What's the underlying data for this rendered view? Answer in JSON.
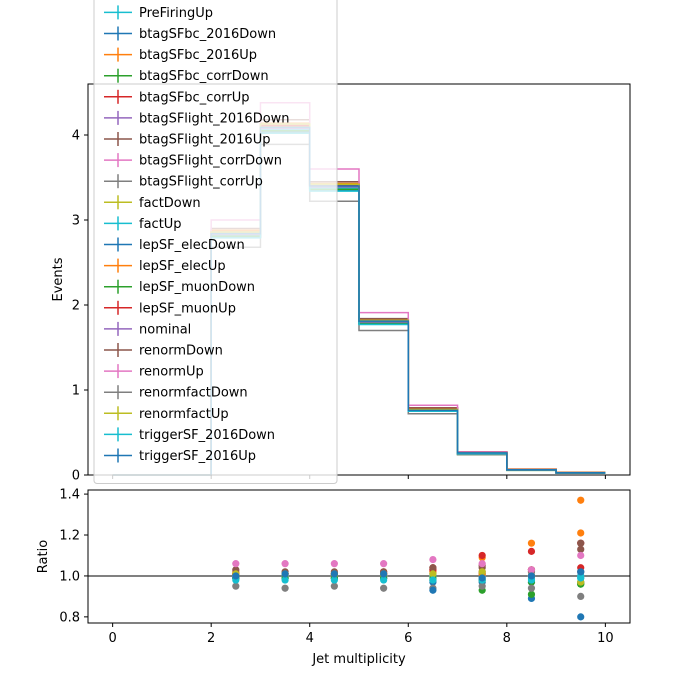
{
  "chart_data": [
    {
      "type": "line",
      "panel": "main",
      "xlabel": "",
      "ylabel": "Events",
      "xlim": [
        -0.5,
        10.5
      ],
      "ylim": [
        0,
        4.6
      ],
      "yticks": [
        0,
        1,
        2,
        3,
        4
      ],
      "ytick_labels": [
        "0",
        "1",
        "2",
        "3",
        "4"
      ],
      "bin_edges": [
        0,
        1,
        2,
        3,
        4,
        5,
        6,
        7,
        8,
        9,
        10
      ],
      "legend_position": "upper-left",
      "series": [
        {
          "name": "PreFiringUp",
          "color": "#17becf",
          "values": [
            0,
            0,
            2.84,
            4.08,
            3.38,
            1.8,
            0.76,
            0.26,
            0.06,
            0.025
          ]
        },
        {
          "name": "btagSFbc_2016Down",
          "color": "#1f77b4",
          "values": [
            0,
            0,
            2.8,
            4.05,
            3.36,
            1.79,
            0.75,
            0.25,
            0.06,
            0.024
          ]
        },
        {
          "name": "btagSFbc_2016Up",
          "color": "#ff7f0e",
          "values": [
            0,
            0,
            2.88,
            4.14,
            3.43,
            1.82,
            0.78,
            0.27,
            0.07,
            0.033
          ]
        },
        {
          "name": "btagSFbc_corrDown",
          "color": "#2ca02c",
          "values": [
            0,
            0,
            2.8,
            4.04,
            3.35,
            1.78,
            0.75,
            0.24,
            0.055,
            0.023
          ]
        },
        {
          "name": "btagSFbc_corrUp",
          "color": "#d62728",
          "values": [
            0,
            0,
            2.87,
            4.12,
            3.42,
            1.83,
            0.79,
            0.27,
            0.068,
            0.027
          ]
        },
        {
          "name": "btagSFlight_2016Down",
          "color": "#9467bd",
          "values": [
            0,
            0,
            2.82,
            4.07,
            3.37,
            1.8,
            0.76,
            0.26,
            0.06,
            0.025
          ]
        },
        {
          "name": "btagSFlight_2016Up",
          "color": "#8c564b",
          "values": [
            0,
            0,
            2.86,
            4.1,
            3.4,
            1.82,
            0.78,
            0.27,
            0.065,
            0.028
          ]
        },
        {
          "name": "btagSFlight_corrDown",
          "color": "#e377c2",
          "values": [
            0,
            0,
            2.81,
            4.06,
            3.36,
            1.79,
            0.76,
            0.26,
            0.06,
            0.026
          ]
        },
        {
          "name": "btagSFlight_corrUp",
          "color": "#7f7f7f",
          "values": [
            0,
            0,
            2.86,
            4.11,
            3.41,
            1.81,
            0.77,
            0.26,
            0.063,
            0.026
          ]
        },
        {
          "name": "factDown",
          "color": "#bcbd22",
          "values": [
            0,
            0,
            2.85,
            4.1,
            3.4,
            1.81,
            0.77,
            0.26,
            0.062,
            0.026
          ]
        },
        {
          "name": "factUp",
          "color": "#17becf",
          "values": [
            0,
            0,
            2.82,
            4.06,
            3.37,
            1.8,
            0.76,
            0.26,
            0.062,
            0.026
          ]
        },
        {
          "name": "lepSF_elecDown",
          "color": "#1f77b4",
          "values": [
            0,
            0,
            2.8,
            4.04,
            3.35,
            1.78,
            0.75,
            0.25,
            0.06,
            0.025
          ]
        },
        {
          "name": "lepSF_elecUp",
          "color": "#ff7f0e",
          "values": [
            0,
            0,
            2.87,
            4.12,
            3.42,
            1.82,
            0.78,
            0.26,
            0.064,
            0.027
          ]
        },
        {
          "name": "lepSF_muonDown",
          "color": "#2ca02c",
          "values": [
            0,
            0,
            2.81,
            4.05,
            3.36,
            1.79,
            0.75,
            0.25,
            0.06,
            0.025
          ]
        },
        {
          "name": "lepSF_muonUp",
          "color": "#d62728",
          "values": [
            0,
            0,
            2.86,
            4.11,
            3.41,
            1.82,
            0.77,
            0.26,
            0.064,
            0.027
          ]
        },
        {
          "name": "nominal",
          "color": "#9467bd",
          "values": [
            0,
            0,
            2.83,
            4.08,
            3.39,
            1.8,
            0.76,
            0.26,
            0.062,
            0.026
          ]
        },
        {
          "name": "renormDown",
          "color": "#8c564b",
          "values": [
            0,
            0,
            2.9,
            4.18,
            3.45,
            1.84,
            0.79,
            0.27,
            0.066,
            0.028
          ]
        },
        {
          "name": "renormUp",
          "color": "#e377c2",
          "values": [
            0,
            0,
            3.0,
            4.38,
            3.6,
            1.91,
            0.82,
            0.27,
            0.065,
            0.027
          ]
        },
        {
          "name": "renormfactDown",
          "color": "#7f7f7f",
          "values": [
            0,
            0,
            2.68,
            3.89,
            3.22,
            1.7,
            0.72,
            0.24,
            0.058,
            0.024
          ]
        },
        {
          "name": "renormfactUp",
          "color": "#bcbd22",
          "values": [
            0,
            0,
            2.86,
            4.13,
            3.42,
            1.82,
            0.77,
            0.26,
            0.063,
            0.026
          ]
        },
        {
          "name": "triggerSF_2016Down",
          "color": "#17becf",
          "values": [
            0,
            0,
            2.79,
            4.02,
            3.34,
            1.77,
            0.75,
            0.25,
            0.06,
            0.025
          ]
        },
        {
          "name": "triggerSF_2016Up",
          "color": "#1f77b4",
          "values": [
            0,
            0,
            2.84,
            4.09,
            3.4,
            1.81,
            0.76,
            0.26,
            0.062,
            0.026
          ]
        }
      ]
    },
    {
      "type": "scatter",
      "panel": "ratio",
      "xlabel": "Jet multiplicity",
      "ylabel": "Ratio",
      "xlim": [
        -0.5,
        10.5
      ],
      "ylim": [
        0.77,
        1.42
      ],
      "xticks": [
        0,
        2,
        4,
        6,
        8,
        10
      ],
      "xtick_labels": [
        "0",
        "2",
        "4",
        "6",
        "8",
        "10"
      ],
      "yticks": [
        0.8,
        1.0,
        1.2,
        1.4
      ],
      "ytick_labels": [
        "0.8",
        "1.0",
        "1.2",
        "1.4"
      ],
      "reference_line": 1.0,
      "x": [
        2.5,
        3.5,
        4.5,
        5.5,
        6.5,
        7.5,
        8.5,
        9.5
      ],
      "series": [
        {
          "color": "#17becf",
          "values": [
            1.0,
            1.0,
            1.0,
            1.0,
            1.0,
            1.0,
            1.0,
            0.99
          ]
        },
        {
          "color": "#1f77b4",
          "values": [
            0.99,
            0.99,
            0.99,
            0.99,
            0.97,
            0.97,
            0.89,
            0.8
          ]
        },
        {
          "color": "#ff7f0e",
          "values": [
            1.02,
            1.01,
            1.01,
            1.01,
            1.02,
            1.09,
            1.16,
            1.37
          ]
        },
        {
          "color": "#2ca02c",
          "values": [
            0.99,
            0.99,
            0.99,
            0.99,
            0.98,
            0.93,
            0.91,
            0.96
          ]
        },
        {
          "color": "#d62728",
          "values": [
            1.01,
            1.01,
            1.01,
            1.02,
            1.04,
            1.1,
            1.12,
            1.16
          ]
        },
        {
          "color": "#9467bd",
          "values": [
            1.0,
            1.0,
            1.0,
            1.0,
            1.01,
            1.01,
            1.0,
            1.0
          ]
        },
        {
          "color": "#8c564b",
          "values": [
            1.01,
            1.0,
            1.0,
            1.01,
            1.03,
            1.04,
            1.02,
            1.13
          ]
        },
        {
          "color": "#e377c2",
          "values": [
            0.99,
            1.0,
            0.99,
            0.99,
            1.0,
            1.01,
            1.0,
            1.02
          ]
        },
        {
          "color": "#7f7f7f",
          "values": [
            1.01,
            1.01,
            1.01,
            1.01,
            1.01,
            1.0,
            1.02,
            1.02
          ]
        },
        {
          "color": "#bcbd22",
          "values": [
            1.01,
            1.0,
            1.0,
            1.0,
            1.0,
            1.01,
            1.0,
            0.97
          ]
        },
        {
          "color": "#17becf",
          "values": [
            0.99,
            1.0,
            0.99,
            0.99,
            1.0,
            0.99,
            0.99,
            1.0
          ]
        },
        {
          "color": "#1f77b4",
          "values": [
            0.99,
            0.99,
            0.99,
            0.99,
            0.98,
            0.98,
            0.97,
            0.97
          ]
        },
        {
          "color": "#ff7f0e",
          "values": [
            1.01,
            1.01,
            1.01,
            1.01,
            1.02,
            1.01,
            1.03,
            1.21
          ]
        },
        {
          "color": "#2ca02c",
          "values": [
            0.99,
            0.99,
            0.99,
            0.99,
            0.99,
            0.98,
            0.97,
            0.96
          ]
        },
        {
          "color": "#d62728",
          "values": [
            1.01,
            1.01,
            1.01,
            1.01,
            1.03,
            1.02,
            1.03,
            1.04
          ]
        },
        {
          "color": "#8c564b",
          "values": [
            1.03,
            1.02,
            1.02,
            1.02,
            1.04,
            1.05,
            1.03,
            1.16
          ]
        },
        {
          "color": "#e377c2",
          "values": [
            1.06,
            1.06,
            1.06,
            1.06,
            1.08,
            1.06,
            1.03,
            1.1
          ]
        },
        {
          "color": "#7f7f7f",
          "values": [
            0.95,
            0.94,
            0.95,
            0.94,
            0.94,
            0.95,
            0.94,
            0.9
          ]
        },
        {
          "color": "#bcbd22",
          "values": [
            1.01,
            1.01,
            1.01,
            1.01,
            1.01,
            1.02,
            1.0,
            0.97
          ]
        },
        {
          "color": "#17becf",
          "values": [
            0.98,
            0.98,
            0.98,
            0.98,
            0.98,
            0.98,
            0.98,
            0.99
          ]
        },
        {
          "color": "#1f77b4",
          "values": [
            1.0,
            1.01,
            1.01,
            1.01,
            0.93,
            0.99,
            1.0,
            1.02
          ]
        }
      ]
    }
  ]
}
